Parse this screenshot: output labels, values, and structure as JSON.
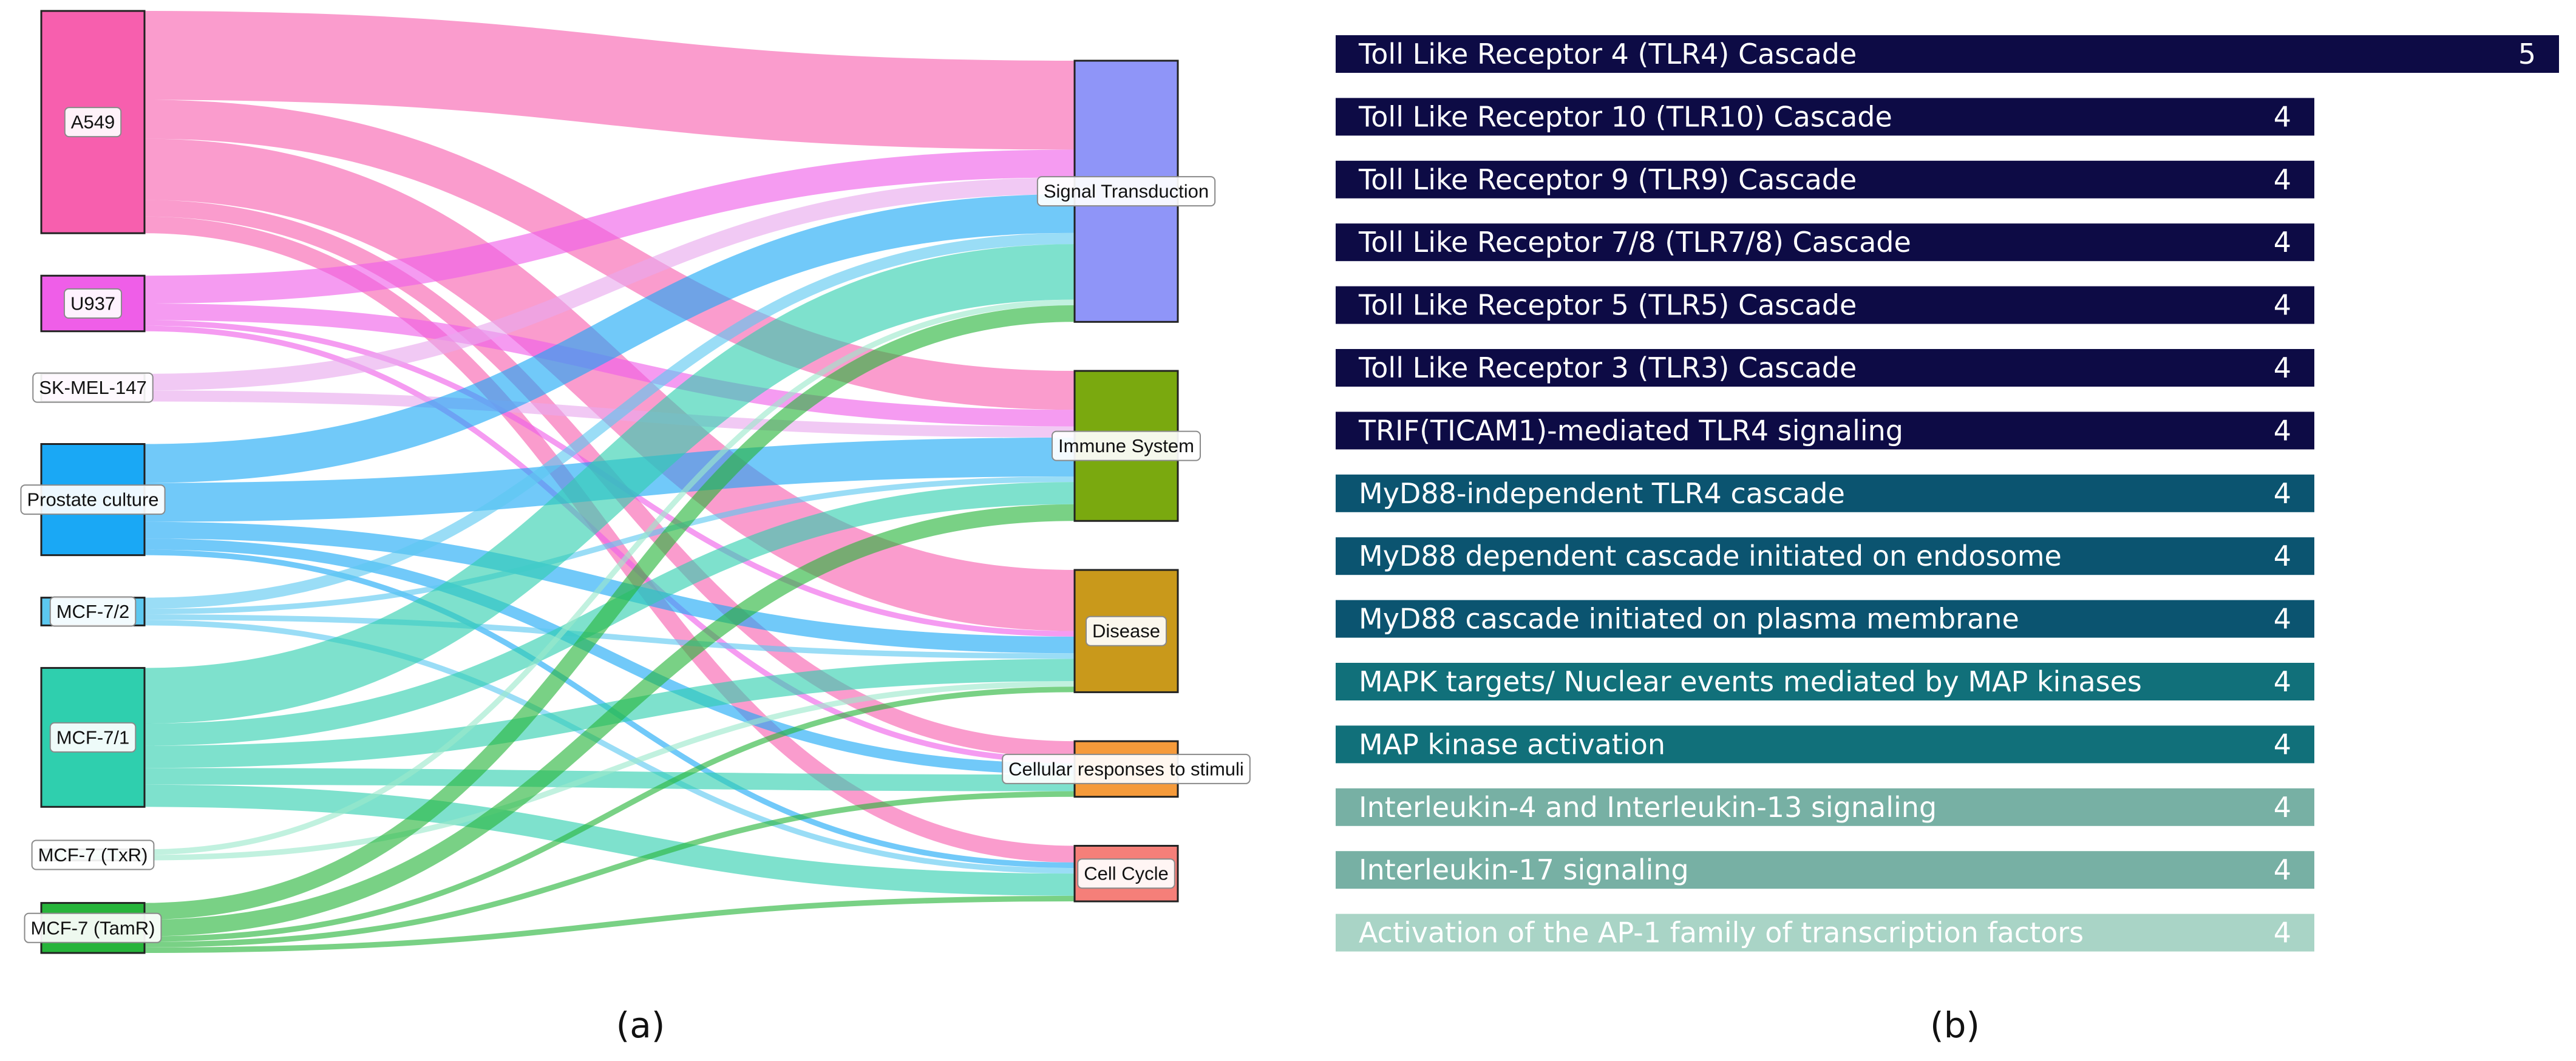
{
  "panels": {
    "a_label": "(a)",
    "b_label": "(b)"
  },
  "chart_data": [
    {
      "type": "sankey",
      "sources": [
        {
          "name": "A549",
          "color": "#f75fae"
        },
        {
          "name": "U937",
          "color": "#ef5ee8"
        },
        {
          "name": "SK-MEL-147",
          "color": "#e9a8ee"
        },
        {
          "name": "Prostate culture",
          "color": "#1aa8f5"
        },
        {
          "name": "MCF-7/2",
          "color": "#5cc8f0"
        },
        {
          "name": "MCF-7/1",
          "color": "#2fcfae"
        },
        {
          "name": "MCF-7 (TxR)",
          "color": "#9be9cc"
        },
        {
          "name": "MCF-7 (TamR)",
          "color": "#26b43a"
        }
      ],
      "targets": [
        {
          "name": "Signal Transduction",
          "color": "#8f95f8"
        },
        {
          "name": "Immune System",
          "color": "#7aa90f"
        },
        {
          "name": "Disease",
          "color": "#c9991b"
        },
        {
          "name": "Cellular responses to stimuli",
          "color": "#f59a3a"
        },
        {
          "name": "Cell Cycle",
          "color": "#f57f79"
        }
      ],
      "flows": [
        {
          "source": "A549",
          "target": "Signal Transduction",
          "value": 16
        },
        {
          "source": "A549",
          "target": "Immune System",
          "value": 7
        },
        {
          "source": "A549",
          "target": "Disease",
          "value": 11
        },
        {
          "source": "A549",
          "target": "Cellular responses to stimuli",
          "value": 3
        },
        {
          "source": "A549",
          "target": "Cell Cycle",
          "value": 3
        },
        {
          "source": "U937",
          "target": "Signal Transduction",
          "value": 5
        },
        {
          "source": "U937",
          "target": "Immune System",
          "value": 3
        },
        {
          "source": "U937",
          "target": "Disease",
          "value": 1
        },
        {
          "source": "U937",
          "target": "Cellular responses to stimuli",
          "value": 1
        },
        {
          "source": "SK-MEL-147",
          "target": "Signal Transduction",
          "value": 3
        },
        {
          "source": "SK-MEL-147",
          "target": "Immune System",
          "value": 2
        },
        {
          "source": "Prostate culture",
          "target": "Signal Transduction",
          "value": 7
        },
        {
          "source": "Prostate culture",
          "target": "Immune System",
          "value": 7
        },
        {
          "source": "Prostate culture",
          "target": "Disease",
          "value": 3
        },
        {
          "source": "Prostate culture",
          "target": "Cellular responses to stimuli",
          "value": 2
        },
        {
          "source": "Prostate culture",
          "target": "Cell Cycle",
          "value": 1
        },
        {
          "source": "MCF-7/2",
          "target": "Signal Transduction",
          "value": 2
        },
        {
          "source": "MCF-7/2",
          "target": "Immune System",
          "value": 1
        },
        {
          "source": "MCF-7/2",
          "target": "Disease",
          "value": 1
        },
        {
          "source": "MCF-7/2",
          "target": "Cell Cycle",
          "value": 1
        },
        {
          "source": "MCF-7/1",
          "target": "Signal Transduction",
          "value": 10
        },
        {
          "source": "MCF-7/1",
          "target": "Immune System",
          "value": 4
        },
        {
          "source": "MCF-7/1",
          "target": "Disease",
          "value": 4
        },
        {
          "source": "MCF-7/1",
          "target": "Cellular responses to stimuli",
          "value": 3
        },
        {
          "source": "MCF-7/1",
          "target": "Cell Cycle",
          "value": 4
        },
        {
          "source": "MCF-7 (TxR)",
          "target": "Signal Transduction",
          "value": 1
        },
        {
          "source": "MCF-7 (TxR)",
          "target": "Disease",
          "value": 1
        },
        {
          "source": "MCF-7 (TamR)",
          "target": "Signal Transduction",
          "value": 3
        },
        {
          "source": "MCF-7 (TamR)",
          "target": "Immune System",
          "value": 3
        },
        {
          "source": "MCF-7 (TamR)",
          "target": "Disease",
          "value": 1
        },
        {
          "source": "MCF-7 (TamR)",
          "target": "Cellular responses to stimuli",
          "value": 1
        },
        {
          "source": "MCF-7 (TamR)",
          "target": "Cell Cycle",
          "value": 1
        }
      ]
    },
    {
      "type": "bar",
      "orientation": "horizontal",
      "xlim": [
        0,
        5
      ],
      "categories": [
        "Toll Like Receptor 4 (TLR4) Cascade",
        "Toll Like Receptor 10 (TLR10) Cascade",
        "Toll Like Receptor 9 (TLR9) Cascade",
        "Toll Like Receptor 7/8 (TLR7/8) Cascade",
        "Toll Like Receptor 5 (TLR5) Cascade",
        "Toll Like Receptor 3 (TLR3) Cascade",
        "TRIF(TICAM1)-mediated TLR4 signaling",
        "MyD88-independent TLR4 cascade",
        "MyD88 dependent cascade initiated on endosome",
        "MyD88 cascade initiated on plasma membrane",
        "MAPK targets/ Nuclear events mediated by MAP kinases",
        "MAP kinase activation",
        "Interleukin-4 and Interleukin-13 signaling",
        "Interleukin-17 signaling",
        "Activation of the AP-1 family of transcription factors"
      ],
      "values": [
        5,
        4,
        4,
        4,
        4,
        4,
        4,
        4,
        4,
        4,
        4,
        4,
        4,
        4,
        4
      ],
      "colors": [
        "#0d0b45",
        "#0d0b45",
        "#0d0b45",
        "#0d0b45",
        "#0d0b45",
        "#0d0b45",
        "#0d0b45",
        "#0b5470",
        "#0b5470",
        "#0b5470",
        "#11707a",
        "#11707a",
        "#77b0a4",
        "#77b0a4",
        "#a9d4c6"
      ]
    }
  ]
}
